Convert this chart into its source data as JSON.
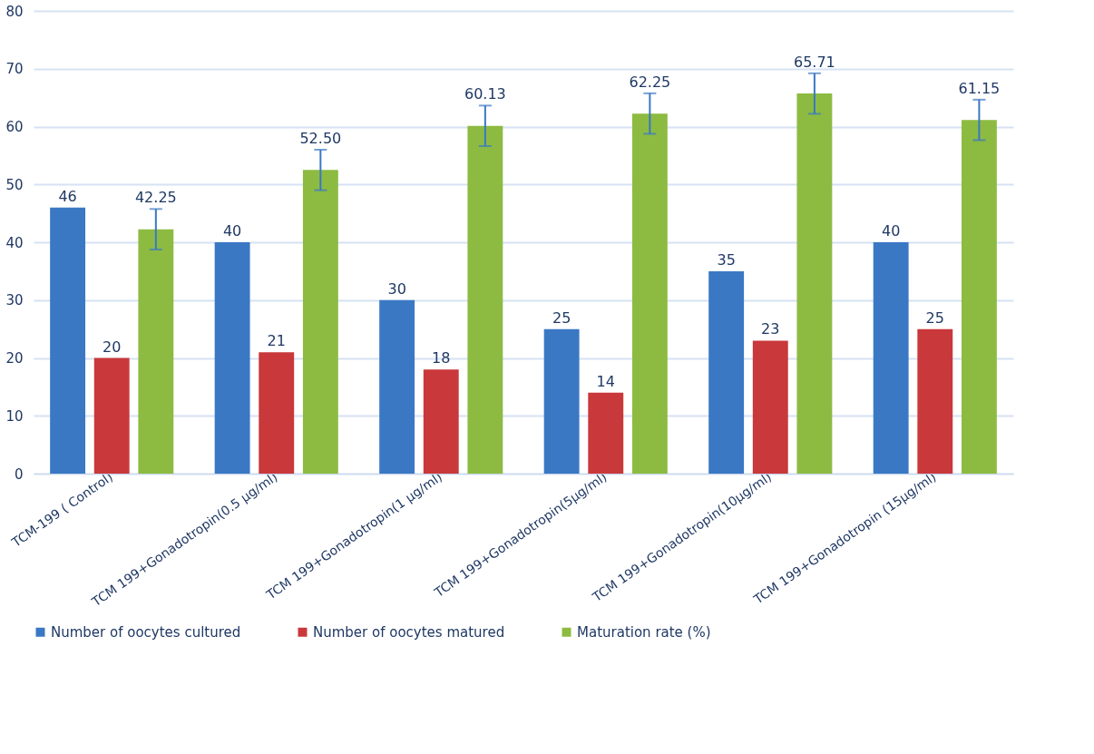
{
  "chart_data": {
    "type": "bar",
    "categories": [
      "TCM-199 ( Control)",
      "TCM 199+Gonadotropin(0.5 µg/ml)",
      "TCM 199+Gonadotropin(1 µg/ml)",
      "TCM 199+Gonadotropin(5µg/ml)",
      "TCM 199+Gonadotropin(10µg/ml)",
      "TCM 199+Gonadotropin (15µg/ml)"
    ],
    "series": [
      {
        "name": "Number of oocytes cultured",
        "color": "#3a78c4",
        "values": [
          46,
          40,
          30,
          25,
          35,
          40
        ]
      },
      {
        "name": "Number of oocytes matured",
        "color": "#c9383a",
        "values": [
          20,
          21,
          18,
          14,
          23,
          25
        ]
      },
      {
        "name": "Maturation rate (%)",
        "color": "#8dbb42",
        "values": [
          42.25,
          52.5,
          60.13,
          62.25,
          65.71,
          61.15
        ],
        "errors": [
          3.5,
          3.5,
          3.5,
          3.5,
          3.5,
          3.5
        ],
        "value_labels": [
          "42.25",
          "52.50",
          "60.13",
          "62.25",
          "65.71",
          "61.15"
        ]
      }
    ],
    "ylim": [
      0,
      80
    ],
    "yticks": [
      0,
      10,
      20,
      30,
      40,
      50,
      60,
      70,
      80
    ],
    "grid": "y",
    "legend": "bottom",
    "data_labels": true
  }
}
